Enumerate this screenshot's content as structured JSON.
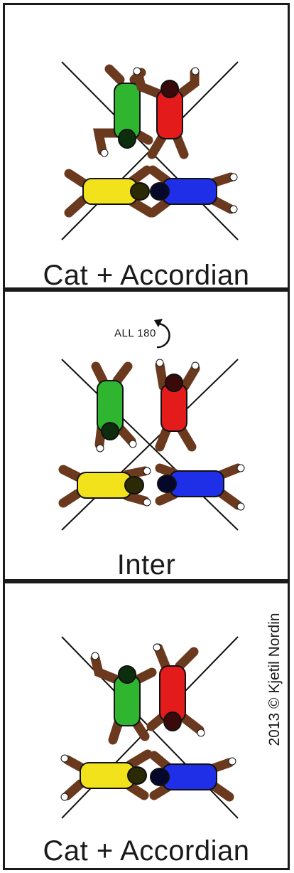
{
  "panels": [
    {
      "caption": "Cat + Accordian"
    },
    {
      "caption": "Inter",
      "rotation_label": "ALL 180"
    },
    {
      "caption": "Cat + Accordian",
      "credit": "2013 © Kjetil Nordin"
    }
  ],
  "colors": {
    "green": "#2fb52f",
    "red": "#e41b1b",
    "yellow": "#f2e21c",
    "blue": "#1f2fe8",
    "limbs": "#6b3a1e"
  }
}
